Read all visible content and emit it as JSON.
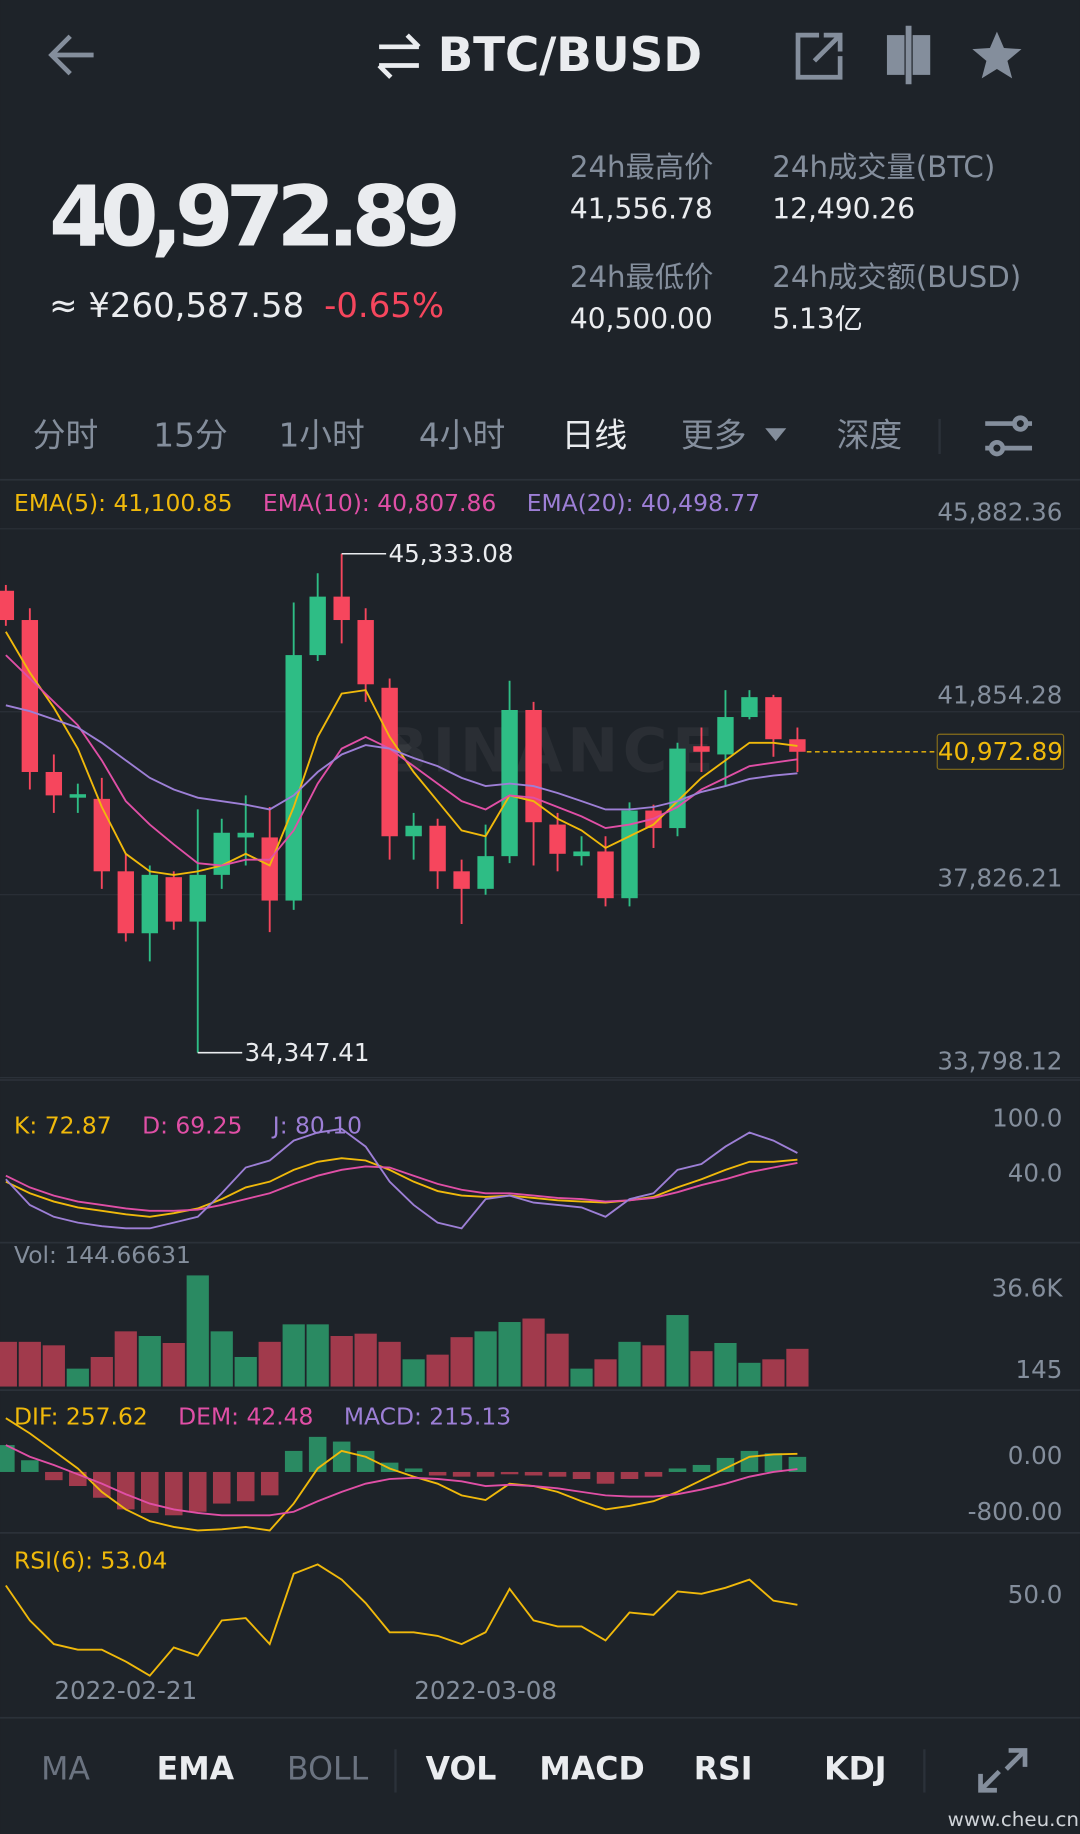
{
  "header": {
    "title": "BTC/BUSD",
    "price": "40,972.89",
    "fiat": "≈ ¥260,587.58",
    "change": "-0.65%"
  },
  "stats": [
    {
      "label": "24h最高价",
      "value": "41,556.78"
    },
    {
      "label": "24h成交量(BTC)",
      "value": "12,490.26"
    },
    {
      "label": "24h最低价",
      "value": "40,500.00"
    },
    {
      "label": "24h成交额(BUSD)",
      "value": "5.13亿"
    }
  ],
  "tabs": {
    "items": [
      "分时",
      "15分",
      "1小时",
      "4小时",
      "日线",
      "更多",
      "深度"
    ],
    "active": 4
  },
  "indicator_tabs": [
    {
      "label": "MA",
      "active": false
    },
    {
      "label": "EMA",
      "active": true
    },
    {
      "label": "BOLL",
      "active": false
    },
    {
      "label": "VOL",
      "active": true
    },
    {
      "label": "MACD",
      "active": true
    },
    {
      "label": "RSI",
      "active": true
    },
    {
      "label": "KDJ",
      "active": true
    }
  ],
  "watermark": "BINANCE",
  "site": "www.cheu.cn",
  "chart_data": [
    {
      "type": "candlestick",
      "up_color": "#2ebd85",
      "down_color": "#f6465d",
      "grid": true,
      "categories": [
        null,
        null,
        null,
        null,
        null,
        "2022-02-21",
        null,
        null,
        null,
        null,
        null,
        null,
        null,
        null,
        null,
        null,
        null,
        null,
        null,
        null,
        "2022-03-08",
        null,
        null,
        null,
        null,
        null,
        null,
        null,
        null,
        null,
        null,
        null,
        null,
        null
      ],
      "candles": [
        [
          44518,
          44646,
          43746,
          43874
        ],
        [
          43874,
          44132,
          40142,
          40528
        ],
        [
          40528,
          40914,
          39627,
          40013
        ],
        [
          39962,
          40271,
          39627,
          40039
        ],
        [
          39936,
          40399,
          37955,
          38341
        ],
        [
          38341,
          38727,
          36796,
          36977
        ],
        [
          36977,
          38469,
          36359,
          38263
        ],
        [
          38212,
          38341,
          37054,
          37234
        ],
        [
          37234,
          39704,
          34347.41,
          38263
        ],
        [
          38263,
          39499,
          37955,
          39190
        ],
        [
          39087,
          40013,
          38469,
          39190
        ],
        [
          39087,
          39756,
          37002,
          37697
        ],
        [
          37697,
          44260,
          37492,
          43102
        ],
        [
          43102,
          44904,
          42973,
          44389
        ],
        [
          44389,
          45333.08,
          43360,
          43874
        ],
        [
          43874,
          44132,
          42073,
          42459
        ],
        [
          42382,
          42587,
          38598,
          39113
        ],
        [
          39113,
          39627,
          38598,
          39344
        ],
        [
          39344,
          39499,
          37955,
          38341
        ],
        [
          38341,
          38598,
          37182,
          37955
        ],
        [
          37955,
          39370,
          37826,
          38675
        ],
        [
          38675,
          42536,
          38521,
          41893
        ],
        [
          41893,
          42073,
          38469,
          39422
        ],
        [
          39370,
          39627,
          38341,
          38727
        ],
        [
          38675,
          39113,
          38469,
          38778
        ],
        [
          38778,
          39113,
          37569,
          37749
        ],
        [
          37749,
          39859,
          37569,
          39679
        ],
        [
          39679,
          39808,
          38855,
          39293
        ],
        [
          39293,
          41172,
          39113,
          41043
        ],
        [
          41095,
          41507,
          40528,
          40973
        ],
        [
          40914,
          42330,
          40219,
          41738
        ],
        [
          41738,
          42330,
          41687,
          42176
        ],
        [
          42176,
          42227,
          40863,
          41249
        ],
        [
          41249,
          41507,
          40528,
          40972.89
        ]
      ],
      "high_label": "45,333.08",
      "low_label": "34,347.41",
      "series": [
        {
          "name": "EMA(5): 41,100.85",
          "color": "#f0b90b",
          "values": [
            43617,
            42716,
            41944,
            41043,
            39756,
            38727,
            38341,
            38263,
            38341,
            38469,
            38727,
            38469,
            39756,
            41300,
            42253,
            42330,
            41300,
            40528,
            39885,
            39241,
            39113,
            40013,
            39885,
            39499,
            39241,
            38855,
            39113,
            39370,
            39885,
            40399,
            40785,
            41172,
            41172,
            41100.85
          ]
        },
        {
          "name": "EMA(10): 40,807.86",
          "color": "#e04fa6",
          "values": [
            43102,
            42587,
            42073,
            41558,
            40785,
            39885,
            39370,
            38932,
            38521,
            38469,
            38598,
            38598,
            39241,
            40271,
            41043,
            41300,
            41043,
            40657,
            40271,
            39885,
            39704,
            40013,
            39962,
            39756,
            39550,
            39293,
            39370,
            39499,
            39756,
            40142,
            40399,
            40657,
            40734,
            40807.86
          ]
        },
        {
          "name": "EMA(20): 40,498.77",
          "color": "#9d7fd6",
          "values": [
            41995,
            41867,
            41687,
            41507,
            41172,
            40785,
            40399,
            40142,
            39962,
            39885,
            39808,
            39704,
            40013,
            40528,
            40914,
            41120,
            41043,
            40837,
            40657,
            40399,
            40219,
            40271,
            40219,
            40065,
            39885,
            39704,
            39704,
            39756,
            39885,
            40090,
            40219,
            40374,
            40451,
            40498.77
          ]
        }
      ],
      "ylim": [
        33772,
        46834
      ],
      "yticks": [
        {
          "value": 45882.36,
          "label": "45,882.36"
        },
        {
          "value": 41854.28,
          "label": "41,854.28"
        },
        {
          "value": 37826.21,
          "label": "37,826.21"
        },
        {
          "value": 33798.12,
          "label": "33,798.12"
        }
      ]
    },
    {
      "type": "line",
      "ylim": [
        -10,
        110
      ],
      "yticks": [
        {
          "value": 100,
          "label": "100.0"
        },
        {
          "value": 40,
          "label": "40.0"
        }
      ],
      "series": [
        {
          "name": "K: 72.87",
          "color": "#f0b90b",
          "values": [
            48.9,
            36.2,
            27.2,
            20.8,
            17.0,
            13.2,
            10.6,
            14.5,
            19.6,
            29.8,
            42.6,
            48.9,
            61.7,
            70.6,
            74.5,
            71.9,
            61.7,
            48.9,
            38.7,
            33.6,
            32.3,
            33.6,
            31.1,
            28.5,
            27.2,
            26.0,
            28.5,
            32.3,
            42.6,
            51.5,
            61.7,
            70.6,
            70.6,
            72.87
          ]
        },
        {
          "name": "D: 69.25",
          "color": "#e04fa6",
          "values": [
            55.3,
            42.6,
            33.6,
            27.2,
            23.4,
            19.6,
            17.0,
            17.0,
            18.3,
            23.4,
            29.8,
            36.2,
            46.4,
            55.3,
            61.7,
            65.5,
            64.3,
            55.3,
            46.4,
            40.0,
            36.2,
            36.2,
            33.6,
            31.1,
            29.8,
            27.2,
            28.5,
            31.1,
            37.4,
            45.1,
            51.5,
            59.2,
            64.3,
            69.25
          ]
        },
        {
          "name": "J: 80.10",
          "color": "#9d7fd6",
          "values": [
            51.5,
            23.4,
            10.6,
            4.2,
            0.4,
            -2.1,
            -2.1,
            4.2,
            10.6,
            36.2,
            64.3,
            71.9,
            93.6,
            102.5,
            106.4,
            87.2,
            48.9,
            23.4,
            4.2,
            -2.1,
            29.8,
            33.6,
            26.0,
            23.4,
            20.8,
            10.6,
            29.8,
            36.2,
            61.7,
            68.1,
            87.2,
            102.5,
            93.6,
            80.1
          ]
        }
      ]
    },
    {
      "type": "volume",
      "legend": "Vol: 144.66631",
      "legend_color": "#848e9c",
      "up_color": "#2a8a62",
      "down_color": "#a13a4c",
      "ylim": [
        0,
        36600
      ],
      "yticks": [
        {
          "value": 36600,
          "label": "36.6K"
        },
        145
      ],
      "values": [
        14726,
        14726,
        13575,
        5901,
        9738,
        18179,
        16644,
        14342,
        36600,
        18179,
        9738,
        14726,
        20481,
        20481,
        16644,
        17412,
        14726,
        8970,
        10505,
        16260,
        18179,
        21249,
        22400,
        17412,
        5901,
        8970,
        14726,
        13575,
        23551,
        11656,
        14342,
        7819,
        8970,
        12423
      ]
    },
    {
      "type": "histogram",
      "legend": "MACD: 215.13",
      "legend_color": "#9d7fd6",
      "up_color": "#2a8a62",
      "down_color": "#a13a4c",
      "ylim": [
        -900,
        1050
      ],
      "yticks": [
        {
          "value": 0,
          "label": "0.00"
        },
        {
          "value": -800,
          "label": "-800.00"
        }
      ],
      "values": [
        383,
        167,
        -117,
        -200,
        -367,
        -533,
        -583,
        -617,
        -567,
        -450,
        -417,
        -333,
        300,
        500,
        433,
        300,
        133,
        50,
        -50,
        -67,
        -67,
        -33,
        -50,
        -67,
        -100,
        -167,
        -100,
        -67,
        50,
        100,
        200,
        300,
        267,
        215.13
      ],
      "series": [
        {
          "name": "DIF: 257.62",
          "color": "#f0b90b",
          "values": [
            767,
            550,
            300,
            50,
            -283,
            -533,
            -700,
            -783,
            -833,
            -817,
            -783,
            -833,
            -450,
            50,
            300,
            217,
            50,
            -67,
            -167,
            -333,
            -400,
            -167,
            -200,
            -283,
            -417,
            -533,
            -483,
            -417,
            -283,
            -117,
            50,
            217,
            250,
            257.62
          ]
        },
        {
          "name": "DEM: 42.48",
          "color": "#e04fa6",
          "values": [
            383,
            217,
            100,
            -33,
            -167,
            -317,
            -450,
            -533,
            -583,
            -617,
            -617,
            -617,
            -567,
            -417,
            -283,
            -167,
            -100,
            -83,
            -100,
            -133,
            -200,
            -183,
            -200,
            -233,
            -283,
            -333,
            -350,
            -350,
            -317,
            -250,
            -167,
            -67,
            0,
            42.48
          ]
        }
      ]
    },
    {
      "type": "line",
      "ylim": [
        15,
        85
      ],
      "yticks": [
        {
          "value": 50,
          "label": "50.0"
        }
      ],
      "series": [
        {
          "name": "RSI(6): 53.04",
          "color": "#f0b90b",
          "values": [
            62.2,
            45.6,
            34.4,
            31.7,
            31.7,
            26.1,
            19.4,
            32.8,
            28.9,
            45.6,
            46.7,
            34.4,
            67.8,
            72.2,
            65.0,
            53.9,
            40.0,
            40.0,
            38.3,
            34.4,
            40.0,
            60.6,
            45.6,
            42.8,
            42.8,
            36.1,
            49.4,
            48.3,
            59.4,
            58.3,
            61.1,
            65.0,
            55.0,
            53.04
          ]
        }
      ]
    }
  ]
}
